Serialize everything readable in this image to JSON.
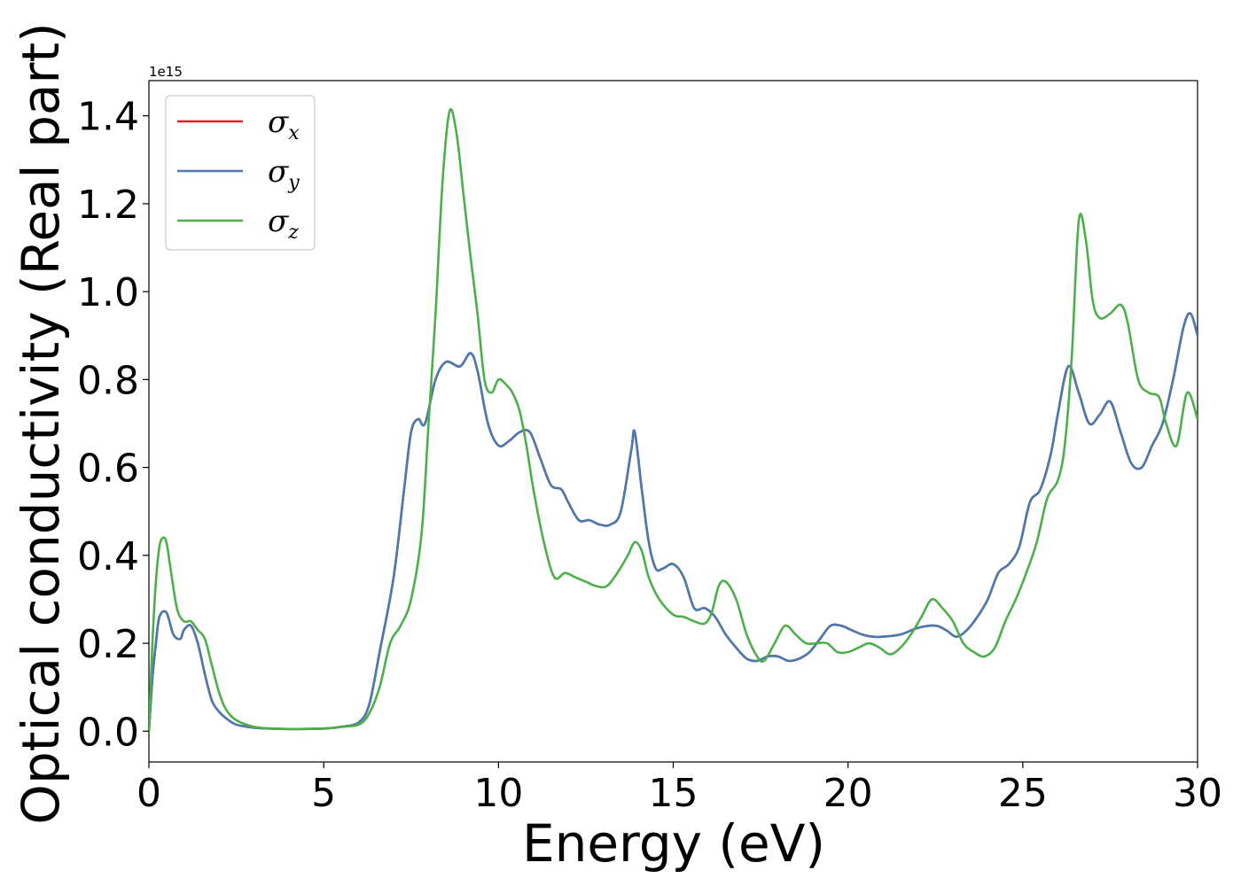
{
  "chart_data": {
    "type": "line",
    "xlabel": "Energy (eV)",
    "ylabel": "Optical conductivity (Real part)",
    "y_offset_text": "1e15",
    "y_scale": 1000000000000000.0,
    "xlim": [
      0,
      30
    ],
    "ylim": [
      -0.07,
      1.48
    ],
    "xticks": [
      0,
      5,
      10,
      15,
      20,
      25,
      30
    ],
    "xtick_labels": [
      "0",
      "5",
      "10",
      "15",
      "20",
      "25",
      "30"
    ],
    "yticks": [
      0.0,
      0.2,
      0.4,
      0.6,
      0.8,
      1.0,
      1.2,
      1.4
    ],
    "ytick_labels": [
      "0.0",
      "0.2",
      "0.4",
      "0.6",
      "0.8",
      "1.0",
      "1.2",
      "1.4"
    ],
    "grid": false,
    "legend_position": "top-left",
    "series": [
      {
        "name": "σx",
        "symbol": "σ",
        "subscript": "x",
        "color": "#d62728",
        "x": [
          0,
          0.1,
          0.2,
          0.3,
          0.5,
          0.7,
          0.9,
          1.0,
          1.2,
          1.4,
          1.6,
          1.8,
          2.0,
          2.2,
          2.5,
          3.0,
          3.5,
          4.0,
          5.0,
          5.5,
          6.0,
          6.3,
          6.6,
          7.0,
          7.3,
          7.5,
          7.7,
          7.9,
          8.2,
          8.5,
          8.9,
          9.2,
          9.4,
          9.7,
          10.0,
          10.3,
          10.6,
          10.9,
          11.2,
          11.5,
          11.8,
          12.0,
          12.3,
          12.6,
          12.9,
          13.2,
          13.5,
          13.8,
          13.9,
          14.1,
          14.3,
          14.5,
          14.7,
          15.0,
          15.3,
          15.6,
          15.9,
          16.2,
          16.5,
          16.8,
          17.1,
          17.4,
          17.7,
          18.0,
          18.3,
          18.6,
          18.9,
          19.2,
          19.5,
          19.8,
          20.1,
          20.4,
          20.7,
          21.0,
          21.5,
          22.0,
          22.5,
          22.8,
          23.1,
          23.4,
          23.7,
          24.0,
          24.3,
          24.6,
          24.9,
          25.2,
          25.5,
          25.8,
          26.0,
          26.3,
          26.6,
          26.9,
          27.2,
          27.5,
          27.8,
          28.1,
          28.4,
          28.7,
          29.0,
          29.3,
          29.6,
          29.8,
          30.0
        ],
        "values": [
          0.0,
          0.12,
          0.2,
          0.26,
          0.27,
          0.22,
          0.21,
          0.23,
          0.24,
          0.2,
          0.13,
          0.07,
          0.045,
          0.03,
          0.015,
          0.008,
          0.006,
          0.005,
          0.006,
          0.01,
          0.02,
          0.06,
          0.18,
          0.35,
          0.55,
          0.68,
          0.71,
          0.7,
          0.8,
          0.84,
          0.83,
          0.86,
          0.82,
          0.7,
          0.65,
          0.66,
          0.68,
          0.68,
          0.62,
          0.56,
          0.55,
          0.52,
          0.48,
          0.48,
          0.47,
          0.47,
          0.5,
          0.64,
          0.68,
          0.55,
          0.43,
          0.37,
          0.37,
          0.38,
          0.35,
          0.28,
          0.28,
          0.26,
          0.22,
          0.19,
          0.165,
          0.16,
          0.17,
          0.17,
          0.16,
          0.165,
          0.18,
          0.21,
          0.24,
          0.24,
          0.23,
          0.22,
          0.215,
          0.215,
          0.22,
          0.235,
          0.24,
          0.23,
          0.215,
          0.23,
          0.26,
          0.3,
          0.36,
          0.38,
          0.42,
          0.52,
          0.55,
          0.63,
          0.72,
          0.83,
          0.77,
          0.7,
          0.72,
          0.75,
          0.68,
          0.61,
          0.6,
          0.65,
          0.7,
          0.8,
          0.92,
          0.95,
          0.9
        ]
      },
      {
        "name": "σy",
        "symbol": "σ",
        "subscript": "y",
        "color": "#4a7bb0",
        "x": [
          0,
          0.1,
          0.2,
          0.3,
          0.5,
          0.7,
          0.9,
          1.0,
          1.2,
          1.4,
          1.6,
          1.8,
          2.0,
          2.2,
          2.5,
          3.0,
          3.5,
          4.0,
          5.0,
          5.5,
          6.0,
          6.3,
          6.6,
          7.0,
          7.3,
          7.5,
          7.7,
          7.9,
          8.2,
          8.5,
          8.9,
          9.2,
          9.4,
          9.7,
          10.0,
          10.3,
          10.6,
          10.9,
          11.2,
          11.5,
          11.8,
          12.0,
          12.3,
          12.6,
          12.9,
          13.2,
          13.5,
          13.8,
          13.9,
          14.1,
          14.3,
          14.5,
          14.7,
          15.0,
          15.3,
          15.6,
          15.9,
          16.2,
          16.5,
          16.8,
          17.1,
          17.4,
          17.7,
          18.0,
          18.3,
          18.6,
          18.9,
          19.2,
          19.5,
          19.8,
          20.1,
          20.4,
          20.7,
          21.0,
          21.5,
          22.0,
          22.5,
          22.8,
          23.1,
          23.4,
          23.7,
          24.0,
          24.3,
          24.6,
          24.9,
          25.2,
          25.5,
          25.8,
          26.0,
          26.3,
          26.6,
          26.9,
          27.2,
          27.5,
          27.8,
          28.1,
          28.4,
          28.7,
          29.0,
          29.3,
          29.6,
          29.8,
          30.0
        ],
        "values": [
          0.0,
          0.12,
          0.2,
          0.26,
          0.27,
          0.22,
          0.21,
          0.23,
          0.24,
          0.2,
          0.13,
          0.07,
          0.045,
          0.03,
          0.015,
          0.008,
          0.006,
          0.005,
          0.006,
          0.01,
          0.02,
          0.06,
          0.18,
          0.35,
          0.55,
          0.68,
          0.71,
          0.7,
          0.8,
          0.84,
          0.83,
          0.86,
          0.82,
          0.7,
          0.65,
          0.66,
          0.68,
          0.68,
          0.62,
          0.56,
          0.55,
          0.52,
          0.48,
          0.48,
          0.47,
          0.47,
          0.5,
          0.64,
          0.68,
          0.55,
          0.43,
          0.37,
          0.37,
          0.38,
          0.35,
          0.28,
          0.28,
          0.26,
          0.22,
          0.19,
          0.165,
          0.16,
          0.17,
          0.17,
          0.16,
          0.165,
          0.18,
          0.21,
          0.24,
          0.24,
          0.23,
          0.22,
          0.215,
          0.215,
          0.22,
          0.235,
          0.24,
          0.23,
          0.215,
          0.23,
          0.26,
          0.3,
          0.36,
          0.38,
          0.42,
          0.52,
          0.55,
          0.63,
          0.72,
          0.83,
          0.77,
          0.7,
          0.72,
          0.75,
          0.68,
          0.61,
          0.6,
          0.65,
          0.7,
          0.8,
          0.92,
          0.95,
          0.9
        ]
      },
      {
        "name": "σz",
        "symbol": "σ",
        "subscript": "z",
        "color": "#4daf4a",
        "x": [
          0,
          0.1,
          0.2,
          0.3,
          0.4,
          0.5,
          0.6,
          0.8,
          1.0,
          1.2,
          1.4,
          1.6,
          1.8,
          2.0,
          2.2,
          2.5,
          3.0,
          3.5,
          4.0,
          5.0,
          5.5,
          6.0,
          6.3,
          6.6,
          6.9,
          7.2,
          7.5,
          7.8,
          8.0,
          8.2,
          8.4,
          8.6,
          8.8,
          9.0,
          9.2,
          9.4,
          9.6,
          9.8,
          10.0,
          10.2,
          10.4,
          10.6,
          10.8,
          11.0,
          11.3,
          11.6,
          11.9,
          12.2,
          12.5,
          12.8,
          13.1,
          13.4,
          13.7,
          13.9,
          14.1,
          14.3,
          14.6,
          15.0,
          15.3,
          15.6,
          15.9,
          16.1,
          16.3,
          16.5,
          16.8,
          17.1,
          17.4,
          17.6,
          17.9,
          18.2,
          18.5,
          18.8,
          19.1,
          19.4,
          19.7,
          20.0,
          20.3,
          20.6,
          20.9,
          21.2,
          21.5,
          21.8,
          22.1,
          22.4,
          22.7,
          23.0,
          23.3,
          23.6,
          23.9,
          24.2,
          24.5,
          24.8,
          25.1,
          25.4,
          25.7,
          26.0,
          26.2,
          26.4,
          26.6,
          26.8,
          27.0,
          27.2,
          27.5,
          27.8,
          28.0,
          28.3,
          28.6,
          28.9,
          29.1,
          29.4,
          29.7,
          30.0
        ],
        "values": [
          0.0,
          0.2,
          0.34,
          0.42,
          0.44,
          0.43,
          0.38,
          0.28,
          0.25,
          0.25,
          0.23,
          0.21,
          0.15,
          0.09,
          0.05,
          0.025,
          0.01,
          0.006,
          0.005,
          0.006,
          0.01,
          0.015,
          0.04,
          0.1,
          0.2,
          0.24,
          0.3,
          0.45,
          0.7,
          0.95,
          1.25,
          1.41,
          1.36,
          1.22,
          1.08,
          0.95,
          0.8,
          0.77,
          0.8,
          0.79,
          0.77,
          0.73,
          0.65,
          0.55,
          0.43,
          0.35,
          0.36,
          0.35,
          0.34,
          0.33,
          0.33,
          0.36,
          0.4,
          0.43,
          0.41,
          0.35,
          0.3,
          0.265,
          0.26,
          0.25,
          0.245,
          0.27,
          0.33,
          0.34,
          0.3,
          0.22,
          0.17,
          0.16,
          0.2,
          0.24,
          0.22,
          0.2,
          0.2,
          0.2,
          0.18,
          0.18,
          0.19,
          0.2,
          0.19,
          0.175,
          0.19,
          0.22,
          0.26,
          0.3,
          0.28,
          0.25,
          0.2,
          0.18,
          0.17,
          0.19,
          0.25,
          0.3,
          0.36,
          0.43,
          0.53,
          0.57,
          0.65,
          0.85,
          1.16,
          1.12,
          0.98,
          0.94,
          0.95,
          0.97,
          0.93,
          0.8,
          0.77,
          0.76,
          0.7,
          0.65,
          0.77,
          0.71
        ]
      }
    ]
  }
}
